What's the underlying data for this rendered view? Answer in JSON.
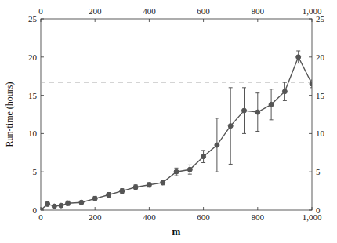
{
  "chart_data": {
    "type": "line",
    "xlabel": "m",
    "ylabel": "Run-time (hours)",
    "x": [
      0,
      25,
      50,
      75,
      100,
      150,
      200,
      250,
      300,
      350,
      400,
      450,
      500,
      550,
      600,
      650,
      700,
      750,
      800,
      850,
      900,
      950,
      1000
    ],
    "values": [
      0.0,
      0.8,
      0.5,
      0.6,
      0.9,
      1.0,
      1.5,
      2.0,
      2.5,
      3.0,
      3.3,
      3.6,
      5.0,
      5.3,
      7.0,
      8.5,
      11.0,
      13.0,
      12.8,
      13.8,
      15.5,
      20.0,
      16.5
    ],
    "errors": [
      0.0,
      0.3,
      0.2,
      0.2,
      0.3,
      0.2,
      0.3,
      0.3,
      0.3,
      0.3,
      0.3,
      0.3,
      0.5,
      0.6,
      0.8,
      3.5,
      5.0,
      3.0,
      2.5,
      2.0,
      1.2,
      0.8,
      0.5
    ],
    "color": "#555555",
    "marker": "circle",
    "line_style": "solid",
    "hline": {
      "value": 16.7,
      "color": "#aaaaaa",
      "line_style": "dashed"
    },
    "xlim": [
      0,
      1000
    ],
    "ylim": [
      0,
      25
    ],
    "xticks": [
      0,
      200,
      400,
      600,
      800,
      {
        "value": 1000,
        "label": "1,000"
      }
    ],
    "yticks": [
      0,
      5,
      10,
      15,
      20,
      25
    ],
    "grid": false
  }
}
